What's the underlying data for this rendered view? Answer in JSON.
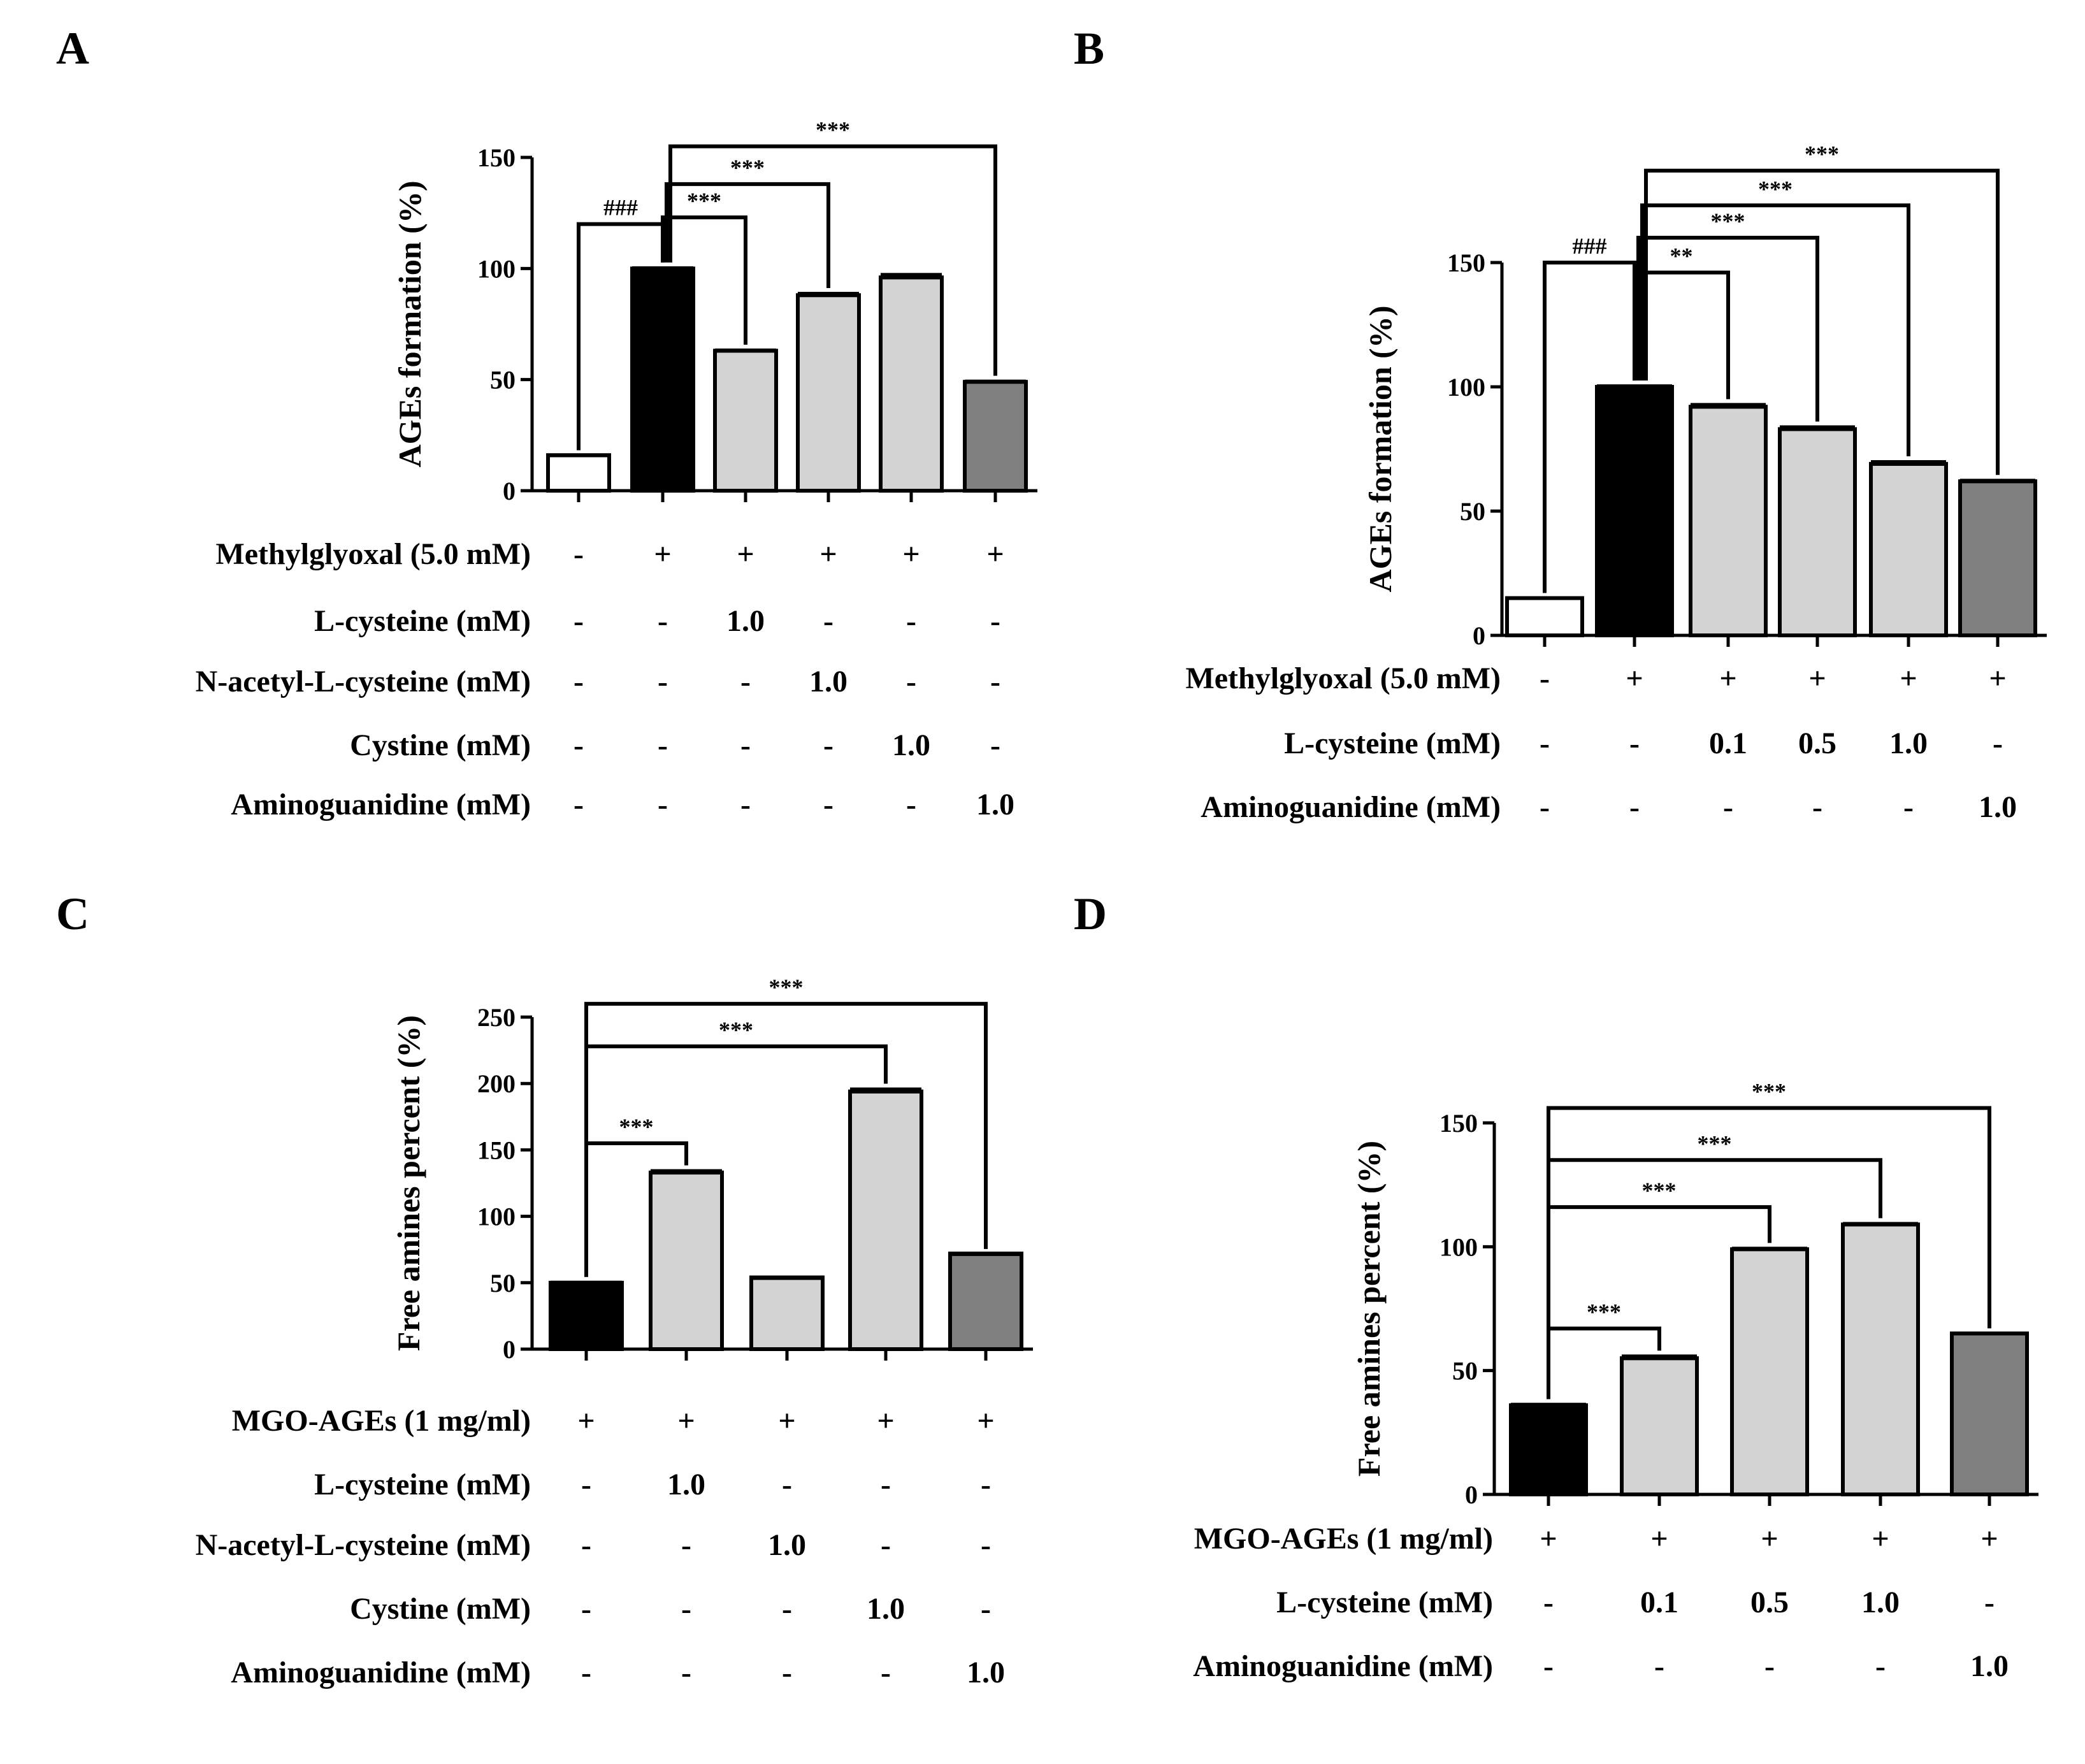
{
  "chart_data": [
    {
      "panel": "A",
      "type": "bar",
      "ylabel": "AGEs formation (%)",
      "ylim": [
        0,
        150
      ],
      "yticks": [
        0,
        50,
        100,
        150
      ],
      "values": [
        16,
        100,
        63,
        88,
        96,
        49
      ],
      "errors": [
        0.5,
        1.0,
        1.0,
        1.5,
        2.0,
        1.0
      ],
      "bar_colors": [
        "#ffffff",
        "#000000",
        "#d3d3d3",
        "#d3d3d3",
        "#d3d3d3",
        "#808080"
      ],
      "rows": [
        {
          "label": "Methylglyoxal (5.0 mM)",
          "cells": [
            "-",
            "+",
            "+",
            "+",
            "+",
            "+"
          ]
        },
        {
          "label": "L-cysteine (mM)",
          "cells": [
            "-",
            "-",
            "1.0",
            "-",
            "-",
            "-"
          ]
        },
        {
          "label": "N-acetyl-L-cysteine (mM)",
          "cells": [
            "-",
            "-",
            "-",
            "1.0",
            "-",
            "-"
          ]
        },
        {
          "label": "Cystine (mM)",
          "cells": [
            "-",
            "-",
            "-",
            "-",
            "1.0",
            "-"
          ]
        },
        {
          "label": "Aminoguanidine (mM)",
          "cells": [
            "-",
            "-",
            "-",
            "-",
            "-",
            "1.0"
          ]
        }
      ],
      "comparisons": [
        {
          "from": 0,
          "to": 1,
          "label": "###",
          "level": 120
        },
        {
          "from": 1,
          "to": 2,
          "label": "***",
          "level": 123
        },
        {
          "from": 1,
          "to": 3,
          "label": "***",
          "level": 138
        },
        {
          "from": 1,
          "to": 5,
          "label": "***",
          "level": 155
        }
      ]
    },
    {
      "panel": "B",
      "type": "bar",
      "ylabel": "AGEs formation (%)",
      "ylim": [
        0,
        150
      ],
      "yticks": [
        0,
        50,
        100,
        150
      ],
      "values": [
        15,
        100,
        92,
        83,
        69,
        62
      ],
      "errors": [
        0.5,
        1.0,
        1.5,
        1.5,
        1.5,
        1.0
      ],
      "bar_colors": [
        "#ffffff",
        "#000000",
        "#d3d3d3",
        "#d3d3d3",
        "#d3d3d3",
        "#808080"
      ],
      "rows": [
        {
          "label": "Methylglyoxal (5.0 mM)",
          "cells": [
            "-",
            "+",
            "+",
            "+",
            "+",
            "+"
          ]
        },
        {
          "label": "L-cysteine (mM)",
          "cells": [
            "-",
            "-",
            "0.1",
            "0.5",
            "1.0",
            "-"
          ]
        },
        {
          "label": "Aminoguanidine (mM)",
          "cells": [
            "-",
            "-",
            "-",
            "-",
            "-",
            "1.0"
          ]
        }
      ],
      "comparisons": [
        {
          "from": 0,
          "to": 1,
          "label": "###",
          "level": 150
        },
        {
          "from": 1,
          "to": 2,
          "label": "**",
          "level": 146
        },
        {
          "from": 1,
          "to": 3,
          "label": "***",
          "level": 160
        },
        {
          "from": 1,
          "to": 4,
          "label": "***",
          "level": 173
        },
        {
          "from": 1,
          "to": 5,
          "label": "***",
          "level": 187
        }
      ]
    },
    {
      "panel": "C",
      "type": "bar",
      "ylabel": "Free amines percent (%)",
      "ylim": [
        0,
        250
      ],
      "yticks": [
        0,
        50,
        100,
        150,
        200,
        250
      ],
      "values": [
        50,
        133,
        54,
        194,
        72
      ],
      "errors": [
        1.5,
        2.5,
        0.5,
        3.0,
        0.5
      ],
      "bar_colors": [
        "#000000",
        "#d3d3d3",
        "#d3d3d3",
        "#d3d3d3",
        "#808080"
      ],
      "rows": [
        {
          "label": "MGO-AGEs (1 mg/ml)",
          "cells": [
            "+",
            "+",
            "+",
            "+",
            "+"
          ]
        },
        {
          "label": "L-cysteine (mM)",
          "cells": [
            "-",
            "1.0",
            "-",
            "-",
            "-"
          ]
        },
        {
          "label": "N-acetyl-L-cysteine (mM)",
          "cells": [
            "-",
            "-",
            "1.0",
            "-",
            "-"
          ]
        },
        {
          "label": "Cystine (mM)",
          "cells": [
            "-",
            "-",
            "-",
            "1.0",
            "-"
          ]
        },
        {
          "label": "Aminoguanidine (mM)",
          "cells": [
            "-",
            "-",
            "-",
            "-",
            "1.0"
          ]
        }
      ],
      "comparisons": [
        {
          "from": 0,
          "to": 1,
          "label": "***",
          "level": 155
        },
        {
          "from": 0,
          "to": 3,
          "label": "***",
          "level": 228
        },
        {
          "from": 0,
          "to": 4,
          "label": "***",
          "level": 260
        }
      ]
    },
    {
      "panel": "D",
      "type": "bar",
      "ylabel": "Free amines percent (%)",
      "ylim": [
        0,
        150
      ],
      "yticks": [
        0,
        50,
        100,
        150
      ],
      "values": [
        36,
        55,
        99,
        109,
        65
      ],
      "errors": [
        1.0,
        1.5,
        1.0,
        1.0,
        0.5
      ],
      "bar_colors": [
        "#000000",
        "#d3d3d3",
        "#d3d3d3",
        "#d3d3d3",
        "#808080"
      ],
      "rows": [
        {
          "label": "MGO-AGEs (1 mg/ml)",
          "cells": [
            "+",
            "+",
            "+",
            "+",
            "+"
          ]
        },
        {
          "label": "L-cysteine (mM)",
          "cells": [
            "-",
            "0.1",
            "0.5",
            "1.0",
            "-"
          ]
        },
        {
          "label": "Aminoguanidine (mM)",
          "cells": [
            "-",
            "-",
            "-",
            "-",
            "1.0"
          ]
        }
      ],
      "comparisons": [
        {
          "from": 0,
          "to": 1,
          "label": "***",
          "level": 67
        },
        {
          "from": 0,
          "to": 2,
          "label": "***",
          "level": 116
        },
        {
          "from": 0,
          "to": 3,
          "label": "***",
          "level": 135
        },
        {
          "from": 0,
          "to": 4,
          "label": "***",
          "level": 156
        }
      ]
    }
  ]
}
